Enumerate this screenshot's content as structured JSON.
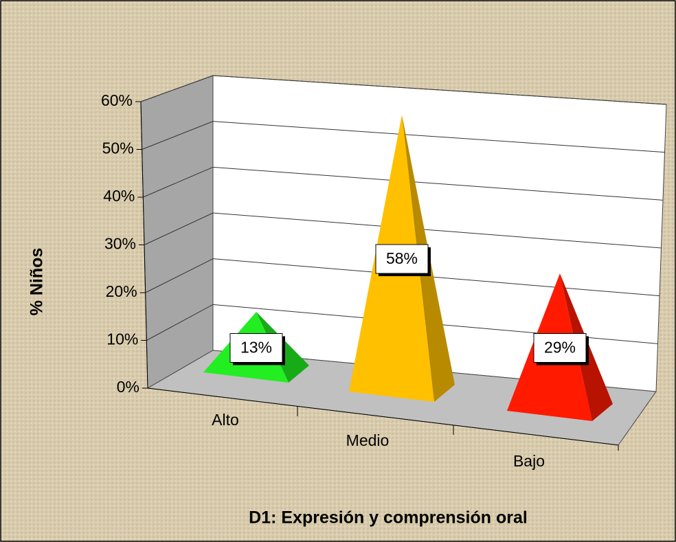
{
  "chart_data": {
    "type": "pyramid",
    "x_label": "D1: Expresión y comprensión oral",
    "y_label": "% Niños",
    "categories": [
      "Alto",
      "Medio",
      "Bajo"
    ],
    "values": [
      13,
      58,
      29
    ],
    "value_labels": [
      "13%",
      "58%",
      "29%"
    ],
    "colors": [
      "#22ee22",
      "#ffc000",
      "#ff1a00"
    ],
    "ylim": [
      0,
      60
    ],
    "yticks": [
      {
        "value": 0,
        "label": "0%"
      },
      {
        "value": 10,
        "label": "10%"
      },
      {
        "value": 20,
        "label": "20%"
      },
      {
        "value": 30,
        "label": "30%"
      },
      {
        "value": 40,
        "label": "40%"
      },
      {
        "value": 50,
        "label": "50%"
      },
      {
        "value": 60,
        "label": "60%"
      }
    ],
    "grid": true
  }
}
